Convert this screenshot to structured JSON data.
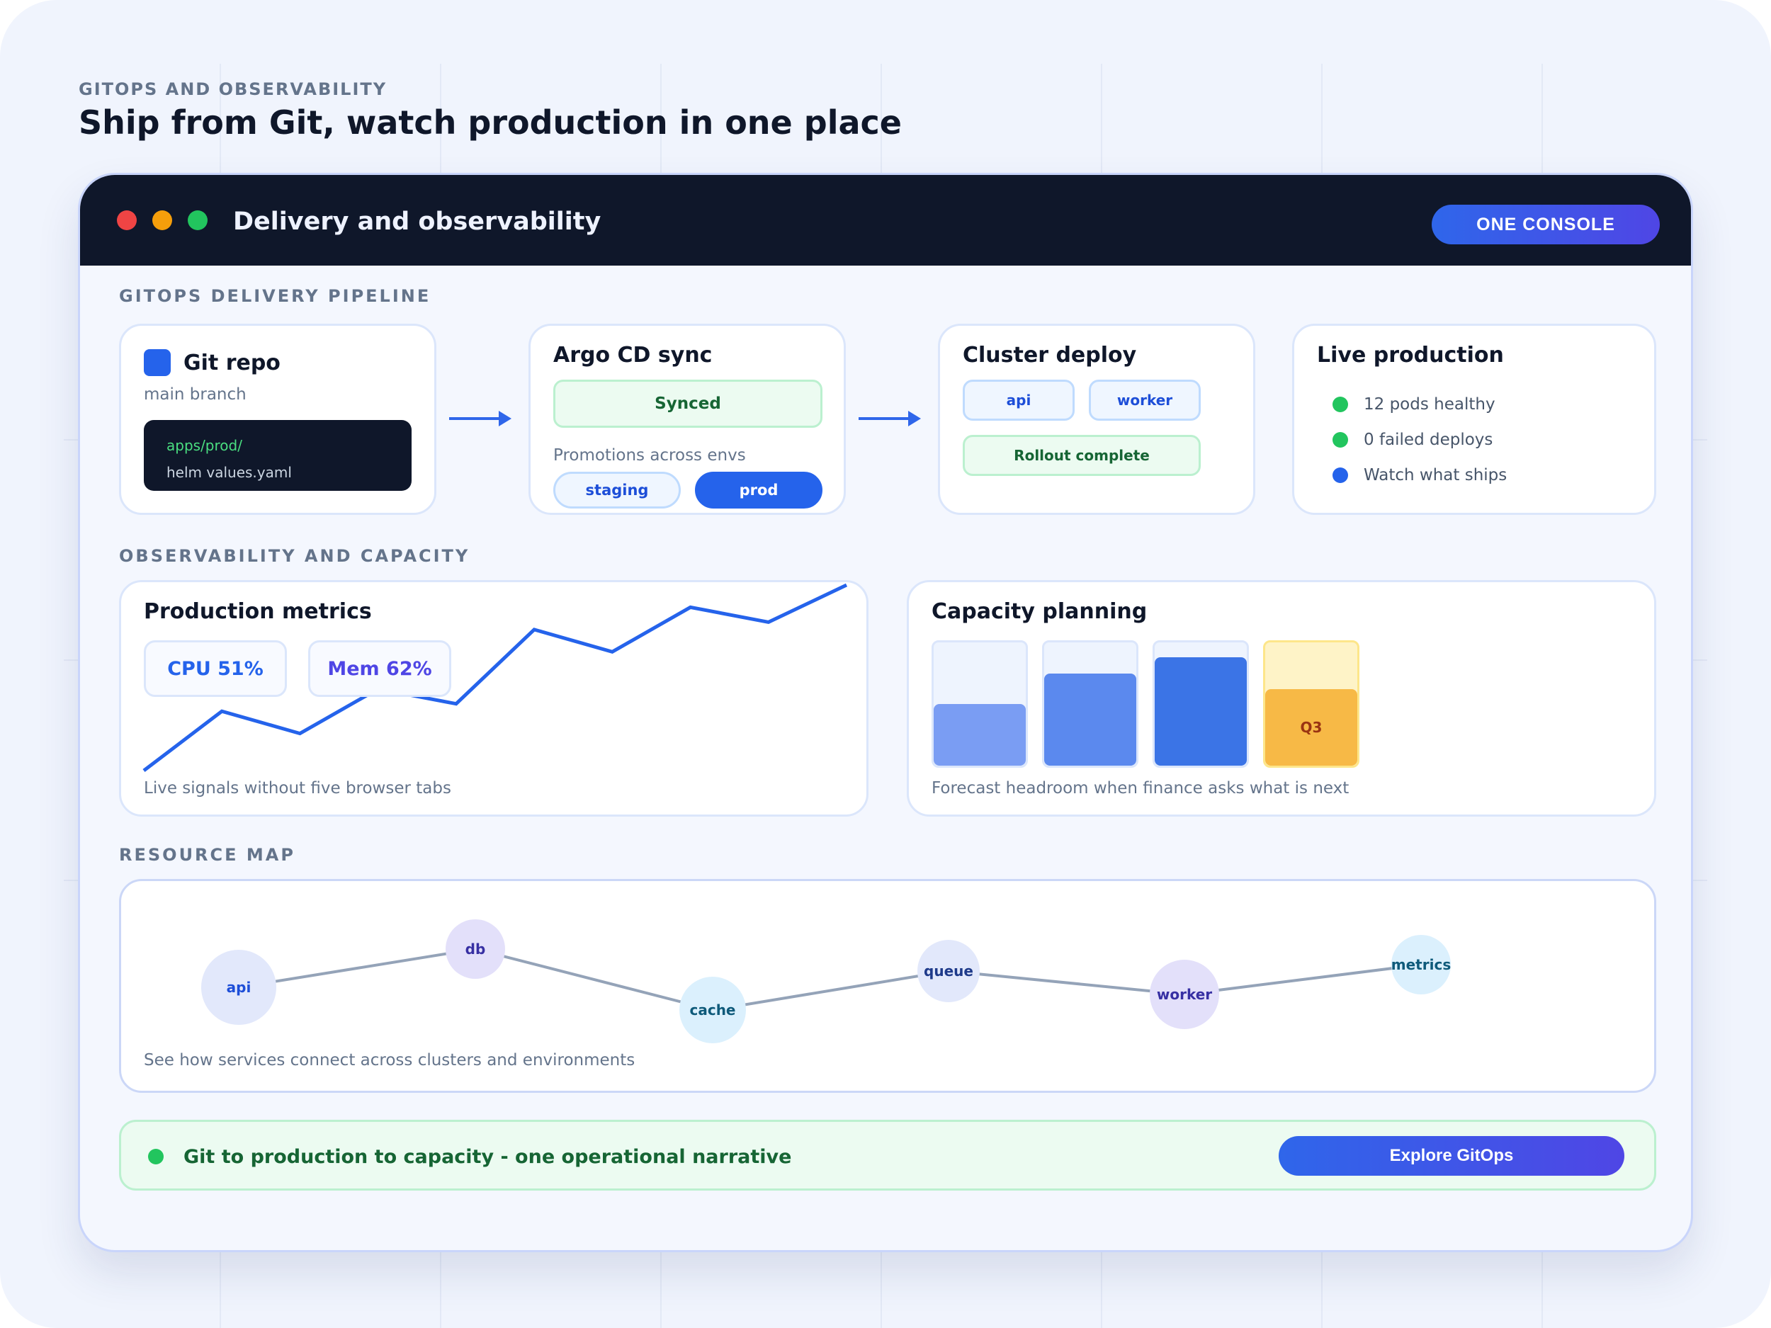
{
  "page": {
    "eyebrow": "GITOPS AND OBSERVABILITY",
    "headline": "Ship from Git, watch production in one place"
  },
  "window": {
    "title": "Delivery and observability",
    "badge": "ONE CONSOLE",
    "traffic_lights": [
      "#ef4444",
      "#f59e0b",
      "#22c55e"
    ]
  },
  "pipeline": {
    "label": "GITOPS DELIVERY PIPELINE",
    "git_repo": {
      "title": "Git repo",
      "branch": "main branch",
      "path": "apps/prod/",
      "file": "helm values.yaml"
    },
    "argo": {
      "title": "Argo CD sync",
      "status": "Synced",
      "promotions_label": "Promotions across envs",
      "envs": [
        "staging",
        "prod"
      ],
      "active_env": "prod"
    },
    "cluster": {
      "title": "Cluster deploy",
      "services": [
        "api",
        "worker"
      ],
      "rollout": "Rollout complete"
    },
    "live": {
      "title": "Live production",
      "items": [
        {
          "text": "12 pods healthy",
          "color": "#22c55e"
        },
        {
          "text": "0 failed deploys",
          "color": "#22c55e"
        },
        {
          "text": "Watch what ships",
          "color": "#2563eb"
        }
      ]
    }
  },
  "observability": {
    "label": "OBSERVABILITY AND CAPACITY",
    "metrics": {
      "title": "Production metrics",
      "cpu": "CPU 51%",
      "mem": "Mem 62%",
      "caption": "Live signals without five browser tabs",
      "trend": [
        0,
        0.4,
        0.25,
        0.55,
        0.45,
        0.95,
        0.8,
        1.1,
        1.0,
        1.25
      ],
      "line_color": "#2563eb"
    },
    "capacity": {
      "title": "Capacity planning",
      "caption": "Forecast headroom when finance asks what is next",
      "bars": [
        {
          "label": "",
          "fill": 0.5,
          "color": "#7a9df3",
          "track": "#eef4fe"
        },
        {
          "label": "",
          "fill": 0.75,
          "color": "#5b89ee",
          "track": "#eef4fe"
        },
        {
          "label": "",
          "fill": 0.88,
          "color": "#3b74e6",
          "track": "#eef4fe"
        },
        {
          "label": "Q3",
          "fill": 0.62,
          "color": "#f7b946",
          "track": "#fef3c7"
        }
      ]
    }
  },
  "resource_map": {
    "label": "RESOURCE MAP",
    "caption": "See how services connect across clusters and environments",
    "nodes": [
      {
        "name": "api",
        "bg": "#e2e8fb",
        "color": "#1d4ed8"
      },
      {
        "name": "db",
        "bg": "#e3e0fa",
        "color": "#3730a3"
      },
      {
        "name": "cache",
        "bg": "#dbf0fd",
        "color": "#0e5a7a"
      },
      {
        "name": "queue",
        "bg": "#e2e8fb",
        "color": "#1e3a8a"
      },
      {
        "name": "worker",
        "bg": "#e3e0fa",
        "color": "#3730a3"
      },
      {
        "name": "metrics",
        "bg": "#dbf0fd",
        "color": "#0e5a7a"
      }
    ]
  },
  "cta": {
    "text": "Git to production to capacity - one operational narrative",
    "button": "Explore GitOps"
  }
}
